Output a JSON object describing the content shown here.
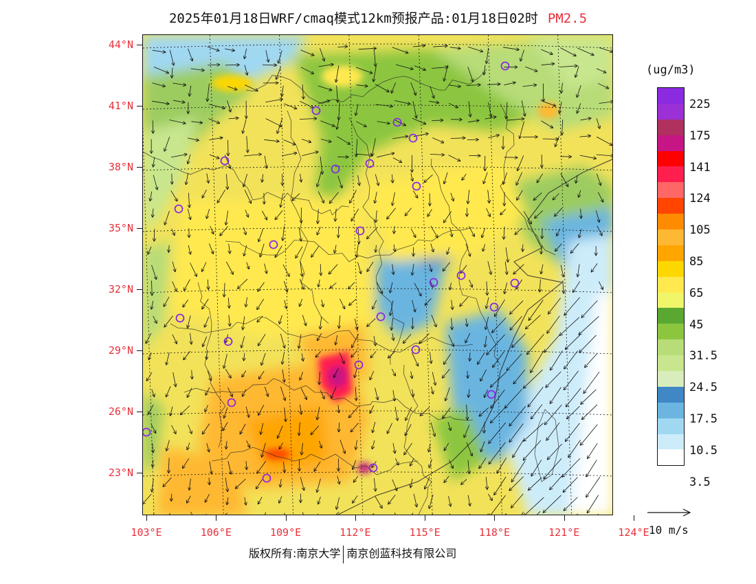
{
  "title": {
    "main": "2025年01月18日WRF/cmaq模式12km预报产品:01月18日02时",
    "pollutant": "PM2.5",
    "pollutant_color": "#e8303a"
  },
  "map": {
    "lat_labels": [
      "44°N",
      "41°N",
      "38°N",
      "35°N",
      "32°N",
      "29°N",
      "26°N",
      "23°N"
    ],
    "lon_labels": [
      "103°E",
      "106°E",
      "109°E",
      "112°E",
      "115°E",
      "118°E",
      "121°E",
      "124°E"
    ],
    "lat_values": [
      44,
      41,
      38,
      35,
      32,
      29,
      26,
      23
    ],
    "lon_values": [
      103,
      106,
      109,
      112,
      115,
      118,
      121,
      124
    ],
    "hotspot_markers": "purple-circle-icon"
  },
  "legend": {
    "unit": "(ug/m3)",
    "colors": [
      "#8a2be2",
      "#9b30d6",
      "#b03060",
      "#c71585",
      "#ff0000",
      "#ff1f4f",
      "#ff6666",
      "#ff4500",
      "#ff8c00",
      "#ffb833",
      "#ffa500",
      "#ffd700",
      "#ffe94f",
      "#f0f56a",
      "#5aa832",
      "#8cc63f",
      "#b7dc78",
      "#c8e68e",
      "#d8edbb",
      "#3f88c5",
      "#6bb5e0",
      "#a0d8f2",
      "#cdecfa",
      "#ffffff"
    ],
    "labels": [
      "225",
      "175",
      "141",
      "124",
      "105",
      "85",
      "65",
      "45",
      "31.5",
      "24.5",
      "17.5",
      "10.5",
      "3.5"
    ]
  },
  "wind": {
    "reference_label": "10 m/s"
  },
  "footer": {
    "copyright": "版权所有:南京大学",
    "company": "南京创蓝科技有限公司"
  }
}
